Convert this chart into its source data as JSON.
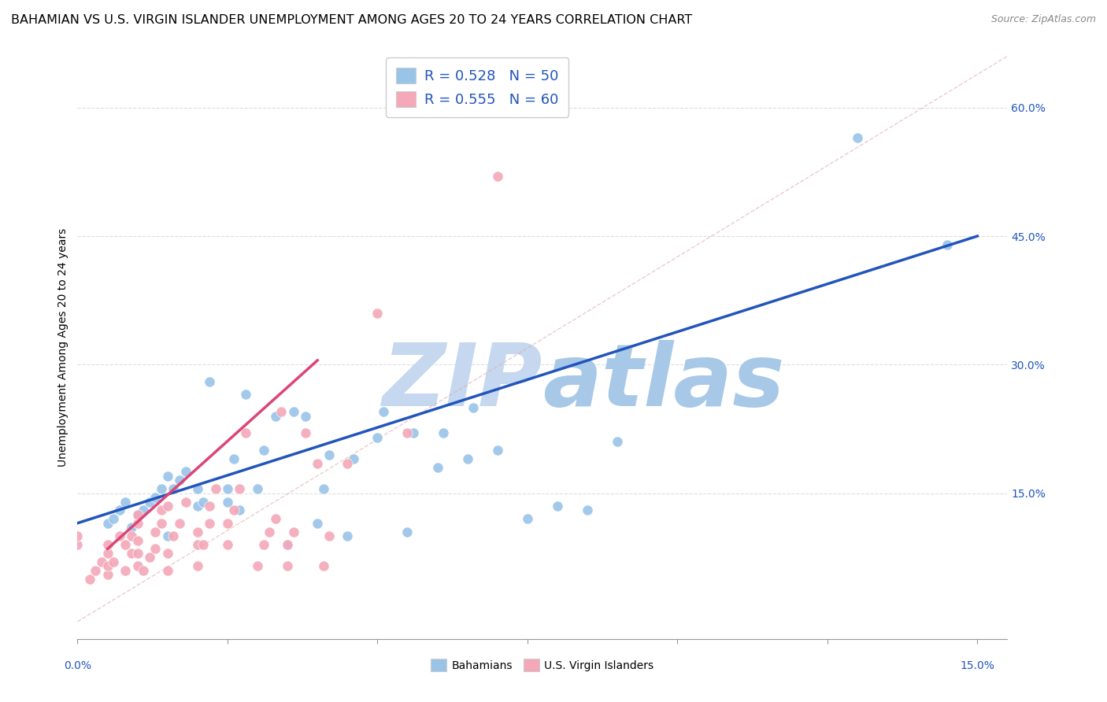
{
  "title": "BAHAMIAN VS U.S. VIRGIN ISLANDER UNEMPLOYMENT AMONG AGES 20 TO 24 YEARS CORRELATION CHART",
  "source": "Source: ZipAtlas.com",
  "ylabel": "Unemployment Among Ages 20 to 24 years",
  "legend_label1": "Bahamians",
  "legend_label2": "U.S. Virgin Islanders",
  "watermark": "ZIPatlas",
  "watermark_color": "#b8cce8",
  "title_fontsize": 11.5,
  "source_fontsize": 9,
  "axis_label_fontsize": 10,
  "tick_fontsize": 10,
  "legend_fontsize": 13,
  "blue_color": "#99c4e8",
  "pink_color": "#f4a8b8",
  "blue_line_color": "#2255bb",
  "pink_line_color": "#dd4477",
  "xlim": [
    0.0,
    0.155
  ],
  "ylim": [
    -0.02,
    0.66
  ],
  "ytick_positions": [
    0.15,
    0.3,
    0.45,
    0.6
  ],
  "ytick_labels": [
    "15.0%",
    "30.0%",
    "45.0%",
    "60.0%"
  ],
  "blue_scatter_x": [
    0.005,
    0.006,
    0.007,
    0.008,
    0.009,
    0.01,
    0.011,
    0.012,
    0.013,
    0.014,
    0.015,
    0.015,
    0.016,
    0.017,
    0.018,
    0.02,
    0.02,
    0.021,
    0.022,
    0.025,
    0.025,
    0.026,
    0.027,
    0.028,
    0.03,
    0.031,
    0.033,
    0.035,
    0.036,
    0.038,
    0.04,
    0.041,
    0.042,
    0.045,
    0.046,
    0.05,
    0.051,
    0.055,
    0.056,
    0.06,
    0.061,
    0.065,
    0.066,
    0.07,
    0.075,
    0.08,
    0.085,
    0.09,
    0.13,
    0.145
  ],
  "blue_scatter_y": [
    0.115,
    0.12,
    0.13,
    0.14,
    0.11,
    0.125,
    0.13,
    0.14,
    0.145,
    0.155,
    0.1,
    0.17,
    0.155,
    0.165,
    0.175,
    0.135,
    0.155,
    0.14,
    0.28,
    0.14,
    0.155,
    0.19,
    0.13,
    0.265,
    0.155,
    0.2,
    0.24,
    0.09,
    0.245,
    0.24,
    0.115,
    0.155,
    0.195,
    0.1,
    0.19,
    0.215,
    0.245,
    0.105,
    0.22,
    0.18,
    0.22,
    0.19,
    0.25,
    0.2,
    0.12,
    0.135,
    0.13,
    0.21,
    0.565,
    0.44
  ],
  "pink_scatter_x": [
    0.0,
    0.0,
    0.002,
    0.003,
    0.004,
    0.005,
    0.005,
    0.005,
    0.005,
    0.006,
    0.007,
    0.008,
    0.008,
    0.009,
    0.009,
    0.01,
    0.01,
    0.01,
    0.01,
    0.01,
    0.011,
    0.012,
    0.013,
    0.013,
    0.014,
    0.014,
    0.015,
    0.015,
    0.015,
    0.016,
    0.017,
    0.018,
    0.02,
    0.02,
    0.02,
    0.021,
    0.022,
    0.022,
    0.023,
    0.025,
    0.025,
    0.026,
    0.027,
    0.028,
    0.03,
    0.031,
    0.032,
    0.033,
    0.034,
    0.035,
    0.035,
    0.036,
    0.038,
    0.04,
    0.041,
    0.042,
    0.045,
    0.05,
    0.055,
    0.07
  ],
  "pink_scatter_y": [
    0.09,
    0.1,
    0.05,
    0.06,
    0.07,
    0.055,
    0.065,
    0.08,
    0.09,
    0.07,
    0.1,
    0.06,
    0.09,
    0.08,
    0.1,
    0.065,
    0.08,
    0.095,
    0.115,
    0.125,
    0.06,
    0.075,
    0.085,
    0.105,
    0.115,
    0.13,
    0.06,
    0.08,
    0.135,
    0.1,
    0.115,
    0.14,
    0.065,
    0.09,
    0.105,
    0.09,
    0.115,
    0.135,
    0.155,
    0.09,
    0.115,
    0.13,
    0.155,
    0.22,
    0.065,
    0.09,
    0.105,
    0.12,
    0.245,
    0.065,
    0.09,
    0.105,
    0.22,
    0.185,
    0.065,
    0.1,
    0.185,
    0.36,
    0.22,
    0.52
  ],
  "blue_line_x": [
    0.0,
    0.15
  ],
  "blue_line_y": [
    0.115,
    0.45
  ],
  "pink_line_x": [
    0.005,
    0.04
  ],
  "pink_line_y": [
    0.085,
    0.305
  ],
  "diag_line_x": [
    0.0,
    0.155
  ],
  "diag_line_y": [
    0.0,
    0.66
  ]
}
